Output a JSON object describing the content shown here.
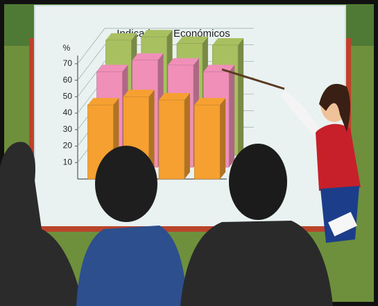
{
  "chart_data": {
    "type": "bar3d",
    "title": "Indicadores Económicos",
    "y_label": "%",
    "categories": [
      null,
      null,
      null,
      null
    ],
    "series": [
      {
        "color": "#a8c060",
        "values": [
          70,
          72,
          68,
          67
        ]
      },
      {
        "color": "#f090b8",
        "values": [
          58,
          65,
          62,
          58
        ]
      },
      {
        "color": "#f5a030",
        "values": [
          45,
          50,
          48,
          45
        ]
      }
    ],
    "ylim": [
      0,
      75
    ],
    "yticks": [
      10,
      20,
      30,
      40,
      50,
      60,
      70
    ],
    "grid": true
  }
}
